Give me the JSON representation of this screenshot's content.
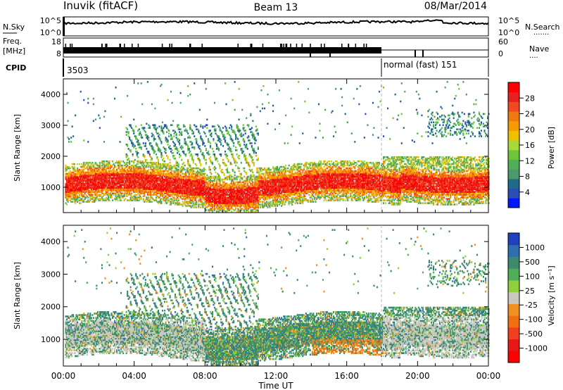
{
  "header": {
    "station": "Inuvik (fitACF)",
    "beam": "Beam 13",
    "date": "08/Mar/2014"
  },
  "strip_panels": {
    "nsky": {
      "label": "N.Sky",
      "ticks": [
        "10^5",
        "10^0"
      ],
      "right_ticks": [
        "10^5",
        "10^0"
      ],
      "right_label": "N.Search",
      "right_dots": "·······"
    },
    "freq": {
      "label_1": "Freq.",
      "label_2": "[MHz]",
      "ticks": [
        "18",
        "8"
      ],
      "right_ticks": [
        "60",
        "0"
      ],
      "right_label": "Nave",
      "right_dots": "····"
    },
    "cpid": {
      "label": "CPID",
      "left_value": "3503",
      "right_value": "normal (fast) 151"
    }
  },
  "chart_data": [
    {
      "type": "heatmap",
      "title": "",
      "ylabel": "Slant Range [km]",
      "ylim": [
        180,
        4500
      ],
      "yticks": [
        1000,
        2000,
        3000,
        4000
      ],
      "xlim": [
        0,
        24
      ],
      "colorbar": {
        "label": "Power [dB]",
        "range": [
          0,
          32
        ],
        "tick_labels": [
          "4",
          "8",
          "12",
          "16",
          "20",
          "24",
          "28"
        ],
        "colors": [
          "#0018ff",
          "#2c4db4",
          "#1f6a8a",
          "#4a9a6a",
          "#4fae5a",
          "#6ec43a",
          "#a8d83c",
          "#f0c000",
          "#f59a00",
          "#f07a10",
          "#f04a20",
          "#e82020",
          "#ff0000"
        ]
      }
    },
    {
      "type": "heatmap",
      "title": "",
      "ylabel": "Slant Range [km]",
      "ylim": [
        180,
        4500
      ],
      "yticks": [
        1000,
        2000,
        3000,
        4000
      ],
      "xlim": [
        0,
        24
      ],
      "xlabel": "Time UT",
      "x_tick_labels": [
        "00:00",
        "04:00",
        "08:00",
        "12:00",
        "16:00",
        "20:00",
        "00:00"
      ],
      "colorbar": {
        "label": "Velocity [m s⁻¹]",
        "tick_labels": [
          "1000",
          "500",
          "100",
          "25",
          "-25",
          "-100",
          "-500",
          "-1000"
        ],
        "colors": [
          "#2040c0",
          "#2f6fb0",
          "#3e8a6c",
          "#4fae5a",
          "#8fd03c",
          "#c8c8c0",
          "#f09020",
          "#f07010",
          "#f04020",
          "#e81818",
          "#ff0000"
        ]
      }
    }
  ]
}
